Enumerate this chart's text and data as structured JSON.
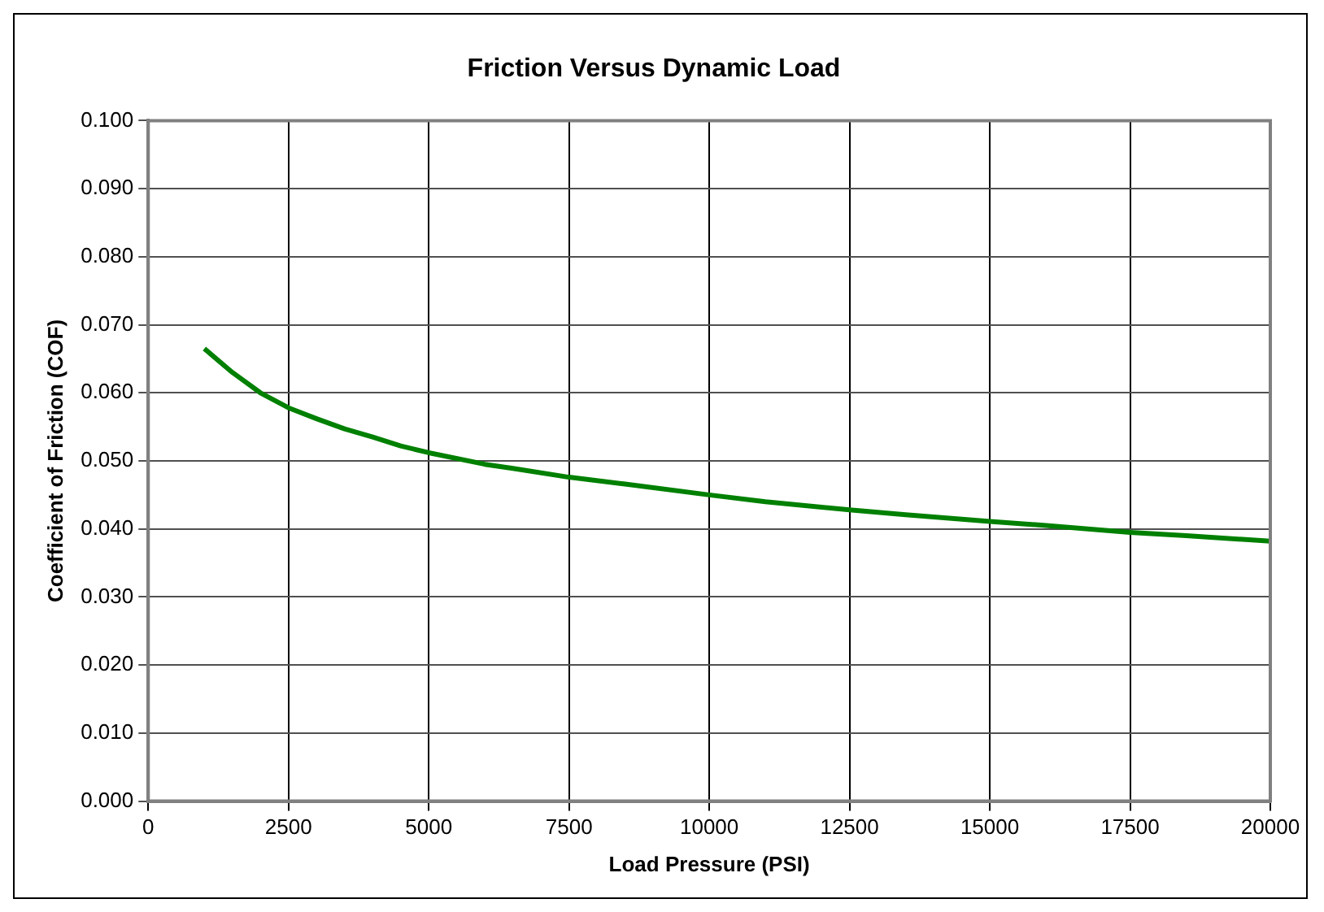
{
  "chart_data": {
    "type": "line",
    "title": "Friction Versus Dynamic Load",
    "xlabel": "Load Pressure (PSI)",
    "ylabel": "Coefficient of Friction (COF)",
    "x": [
      1000,
      1500,
      2000,
      2500,
      3000,
      3500,
      4000,
      4500,
      5000,
      6000,
      6500,
      7500,
      8500,
      10000,
      11000,
      12500,
      13500,
      15000,
      16000,
      17500,
      18500,
      20000
    ],
    "series": [
      {
        "color": "#008000",
        "values": [
          0.0665,
          0.063,
          0.06,
          0.0578,
          0.0562,
          0.0547,
          0.0535,
          0.0522,
          0.0512,
          0.0495,
          0.0489,
          0.0476,
          0.0466,
          0.045,
          0.044,
          0.0428,
          0.0421,
          0.0411,
          0.0405,
          0.0395,
          0.039,
          0.0382
        ]
      }
    ],
    "xlim": [
      0,
      20000
    ],
    "xticks": [
      0,
      2500,
      5000,
      7500,
      10000,
      12500,
      15000,
      17500,
      20000
    ],
    "ylim": [
      0,
      0.1
    ],
    "yticks": [
      {
        "value": 0,
        "label": "0.000"
      },
      {
        "value": 0.01,
        "label": "0.010"
      },
      {
        "value": 0.02,
        "label": "0.020"
      },
      {
        "value": 0.03,
        "label": "0.030"
      },
      {
        "value": 0.04,
        "label": "0.040"
      },
      {
        "value": 0.05,
        "label": "0.050"
      },
      {
        "value": 0.06,
        "label": "0.060"
      },
      {
        "value": 0.07,
        "label": "0.070"
      },
      {
        "value": 0.08,
        "label": "0.080"
      },
      {
        "value": 0.09,
        "label": "0.090"
      },
      {
        "value": 0.1,
        "label": "0.100"
      }
    ],
    "grid": true,
    "legend": false,
    "marker": "none",
    "line_style": "solid"
  }
}
